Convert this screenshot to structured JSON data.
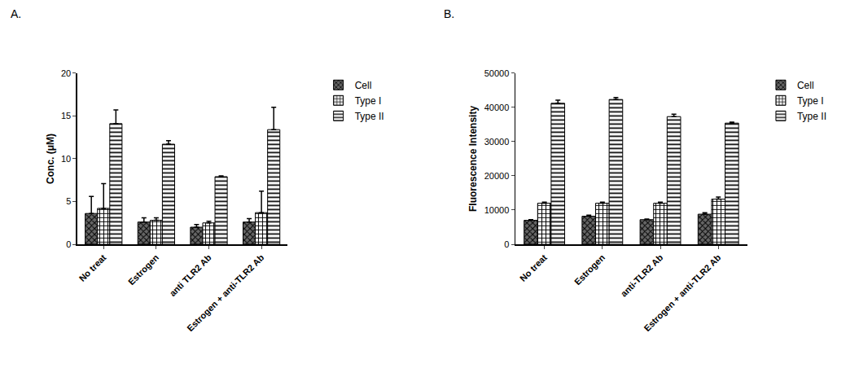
{
  "chart_data": [
    {
      "type": "bar",
      "title": "A.",
      "categories": [
        "No treat",
        "Estrogen",
        "anti TLR2 Ab",
        "Estrogen + anti-TLR2 Ab"
      ],
      "y_label": "Conc. (μM)",
      "ylim": [
        0,
        20
      ],
      "yticks": [
        0,
        5,
        10,
        15,
        20
      ],
      "grid": false,
      "legend": "right",
      "series": [
        {
          "name": "Cell",
          "color": "#666666",
          "marker": "x",
          "values": [
            3.6,
            2.6,
            2.0,
            2.6
          ],
          "errors": [
            2.0,
            0.5,
            0.3,
            0.4
          ]
        },
        {
          "name": "Type I",
          "color": "#ffffff",
          "marker": "+",
          "values": [
            4.2,
            2.8,
            2.5,
            3.7
          ],
          "errors": [
            2.9,
            0.3,
            0.2,
            2.5
          ]
        },
        {
          "name": "Type II",
          "color": "#ffffff",
          "marker": "-",
          "values": [
            14.1,
            11.7,
            7.9,
            13.4
          ],
          "errors": [
            1.6,
            0.4,
            0.1,
            2.6
          ]
        }
      ]
    },
    {
      "type": "bar",
      "title": "B.",
      "categories": [
        "No treat",
        "Estrogen",
        "anti-TLR2 Ab",
        "Estrogen + anti-TLR2 Ab"
      ],
      "y_label": "Fluorescence Intensity",
      "ylim": [
        0,
        50000
      ],
      "yticks": [
        0,
        10000,
        20000,
        30000,
        40000,
        50000
      ],
      "grid": false,
      "legend": "right",
      "series": [
        {
          "name": "Cell",
          "color": "#666666",
          "marker": "x",
          "values": [
            7000,
            8200,
            7200,
            8800
          ],
          "errors": [
            200,
            300,
            200,
            400
          ]
        },
        {
          "name": "Type I",
          "color": "#ffffff",
          "marker": "+",
          "values": [
            12000,
            12000,
            12000,
            13200
          ],
          "errors": [
            300,
            300,
            300,
            600
          ]
        },
        {
          "name": "Type II",
          "color": "#ffffff",
          "marker": "-",
          "values": [
            41200,
            42300,
            37300,
            35400
          ],
          "errors": [
            900,
            600,
            700,
            300
          ]
        }
      ]
    }
  ]
}
